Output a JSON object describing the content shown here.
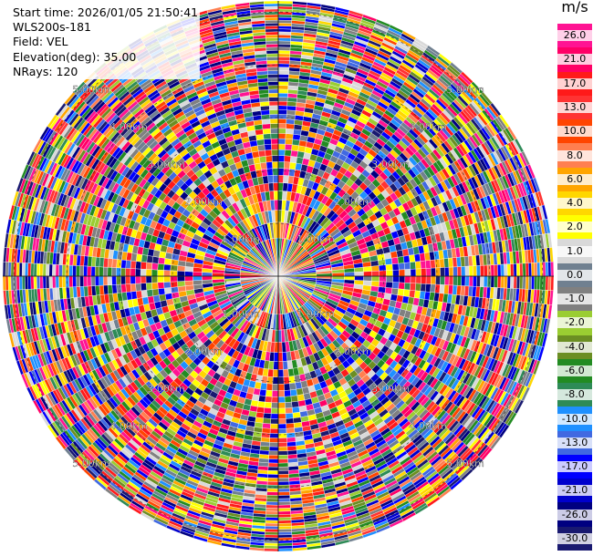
{
  "info": {
    "start_time": "Start time: 2026/01/05 21:50:41",
    "instrument": "WLS200s-181",
    "field": "Field: VEL",
    "elevation": "Elevation(deg): 35.00",
    "nrays": "NRays: 120"
  },
  "colorbar": {
    "unit": "m/s",
    "levels": [
      "26.0",
      "21.0",
      "17.0",
      "13.0",
      "10.0",
      "8.0",
      "6.0",
      "4.0",
      "2.0",
      "1.0",
      "0.0",
      "-1.0",
      "-2.0",
      "-4.0",
      "-6.0",
      "-8.0",
      "-10.0",
      "-13.0",
      "-17.0",
      "-21.0",
      "-26.0",
      "-30.0"
    ],
    "colors": [
      "#ff1493",
      "#ff0066",
      "#ff1a1a",
      "#ff3333",
      "#ff4500",
      "#ff7f50",
      "#ffa500",
      "#ffd700",
      "#ffff00",
      "#d9d9d9",
      "#708090",
      "#808080",
      "#9acd32",
      "#6b8e23",
      "#228b22",
      "#2e8b57",
      "#1e90ff",
      "#4169e1",
      "#0000ff",
      "#0000cd",
      "#000080",
      "#191970"
    ]
  },
  "chart_data": {
    "type": "heatmap",
    "projection": "polar PPI",
    "field": "VEL",
    "unit": "m/s",
    "elevation_deg": 35.0,
    "nrays": 120,
    "range_ring_labels": [
      "1.00km",
      "2.00km",
      "3.00km",
      "4.00km",
      "5.00km"
    ],
    "colorbar_min": -30.0,
    "colorbar_max": 26.0
  }
}
